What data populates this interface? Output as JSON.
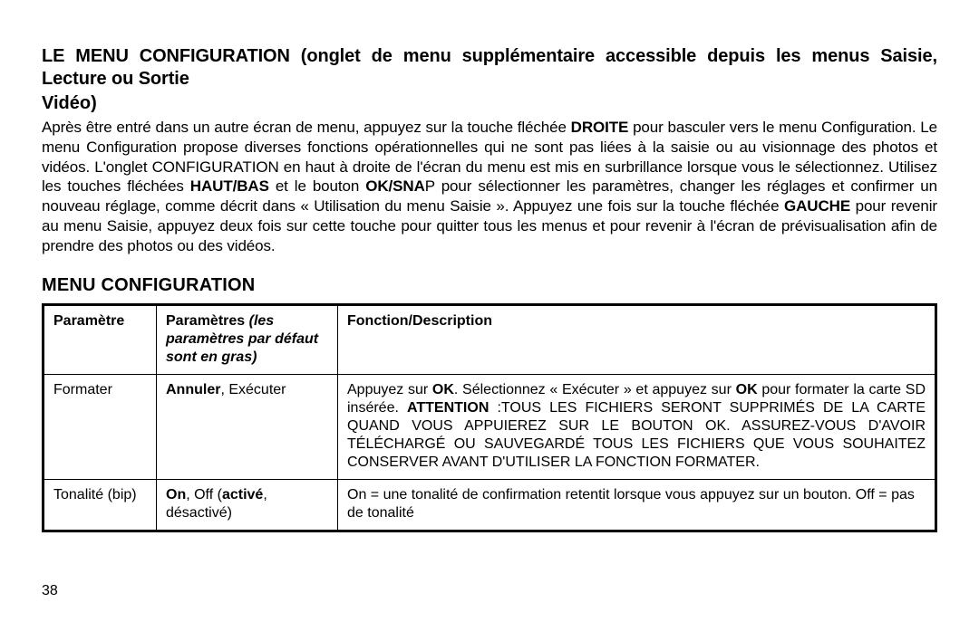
{
  "title_lead": "LE MENU CONFIGURATION",
  "title_rest": " (onglet de menu supplémentaire accessible depuis les menus Saisie, Lecture ou Sortie",
  "title_line2": "Vidéo)",
  "body_p1_seg1": "Après être entré dans un autre écran de menu, appuyez sur la touche fléchée ",
  "body_p1_b1": "DROITE",
  "body_p1_seg2": " pour basculer vers le menu Configuration. Le menu Configuration propose diverses fonctions opérationnelles qui ne sont pas liées à la saisie ou au visionnage des photos et vidéos. L'onglet CONFIGURATION en haut à droite de l'écran du menu est mis en surbrillance lorsque vous le sélectionnez. Utilisez les touches fléchées ",
  "body_p1_b2": "HAUT/BAS",
  "body_p1_seg3": " et le bouton ",
  "body_p1_b3": "OK/SNA",
  "body_p1_seg4": "P pour sélectionner les paramètres, changer les réglages et confirmer un nouveau réglage, comme décrit dans « Utilisation du menu Saisie ».  Appuyez une fois sur la touche fléchée ",
  "body_p1_b4": "GAUCHE",
  "body_p1_seg5": " pour revenir au menu Saisie, appuyez deux fois sur cette touche pour quitter tous les menus et pour revenir à l'écran de prévisualisation afin de prendre des photos ou des vidéos.",
  "section_title": "Menu Configuration",
  "table": {
    "header": {
      "col1": "Paramètre",
      "col2a": "Paramètres",
      "col2b": " (les paramètres par défaut sont en gras)",
      "col3": "Fonction/Description"
    },
    "rows": [
      {
        "param": "Formater",
        "settings_bold": "Annuler",
        "settings_rest": ", Exécuter",
        "desc_pre": "Appuyez sur ",
        "desc_b1": "OK",
        "desc_mid": ". Sélectionnez « Exécuter » et appuyez sur ",
        "desc_b2": "OK",
        "desc_mid2": " pour formater la carte SD insérée. ",
        "desc_attn": "ATTENTION",
        "desc_caps": " :TOUS LES FICHIERS SERONT SUPPRIMÉS DE LA CARTE QUAND VOUS APPUIEREZ SUR LE BOUTON OK. ASSUREZ-VOUS D'AVOIR TÉLÉCHARGÉ OU SAUVEGARDÉ TOUS LES FICHIERS QUE VOUS SOUHAITEZ CONSERVER AVANT D'UTILISER LA FONCTION FORMATER."
      },
      {
        "param": "Tonalité (bip)",
        "settings_bold": "On",
        "settings_rest1": ", Off (",
        "settings_bold2": "activé",
        "settings_rest2": ", désactivé)",
        "desc": "On = une tonalité de confirmation retentit lorsque vous appuyez sur un bouton. Off = pas de tonalité"
      }
    ]
  },
  "page_number": "38"
}
